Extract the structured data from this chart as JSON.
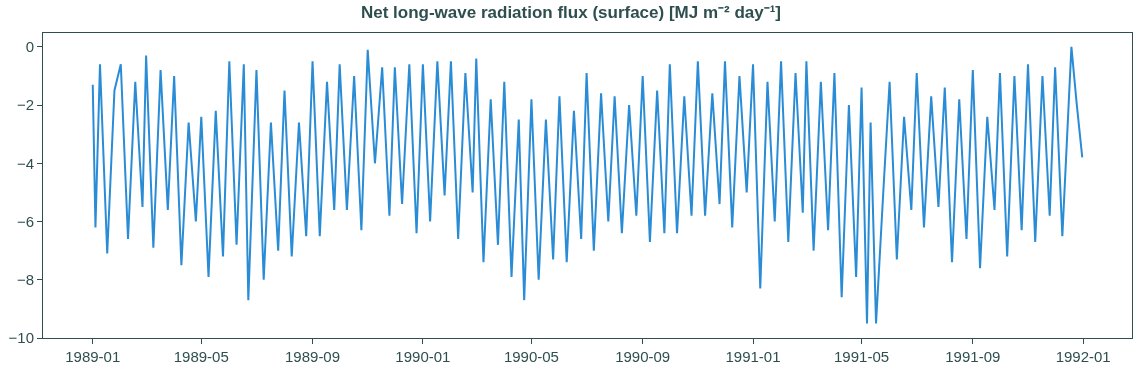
{
  "chart_data": {
    "type": "line",
    "title": "Net long-wave radiation flux (surface) [MJ m⁻² day⁻¹]",
    "x": [
      "1989-01-01",
      "1989-01-04",
      "1989-01-09",
      "1989-01-17",
      "1989-01-25",
      "1989-02-01",
      "1989-02-09",
      "1989-02-17",
      "1989-02-25",
      "1989-03-01",
      "1989-03-09",
      "1989-03-17",
      "1989-03-25",
      "1989-04-01",
      "1989-04-09",
      "1989-04-17",
      "1989-04-25",
      "1989-05-01",
      "1989-05-09",
      "1989-05-17",
      "1989-05-25",
      "1989-06-01",
      "1989-06-09",
      "1989-06-17",
      "1989-06-22",
      "1989-07-01",
      "1989-07-09",
      "1989-07-17",
      "1989-07-25",
      "1989-08-01",
      "1989-08-09",
      "1989-08-17",
      "1989-08-25",
      "1989-09-01",
      "1989-09-09",
      "1989-09-17",
      "1989-09-25",
      "1989-10-01",
      "1989-10-09",
      "1989-10-17",
      "1989-10-25",
      "1989-11-01",
      "1989-11-09",
      "1989-11-17",
      "1989-11-25",
      "1989-12-01",
      "1989-12-09",
      "1989-12-17",
      "1989-12-25",
      "1990-01-01",
      "1990-01-09",
      "1990-01-17",
      "1990-01-25",
      "1990-02-01",
      "1990-02-09",
      "1990-02-17",
      "1990-02-25",
      "1990-03-01",
      "1990-03-09",
      "1990-03-17",
      "1990-03-25",
      "1990-04-01",
      "1990-04-09",
      "1990-04-17",
      "1990-04-23",
      "1990-05-01",
      "1990-05-09",
      "1990-05-17",
      "1990-05-25",
      "1990-06-01",
      "1990-06-09",
      "1990-06-17",
      "1990-06-25",
      "1990-07-01",
      "1990-07-09",
      "1990-07-17",
      "1990-07-25",
      "1990-08-01",
      "1990-08-09",
      "1990-08-17",
      "1990-08-25",
      "1990-09-01",
      "1990-09-09",
      "1990-09-17",
      "1990-09-25",
      "1990-10-01",
      "1990-10-09",
      "1990-10-17",
      "1990-10-25",
      "1990-11-01",
      "1990-11-09",
      "1990-11-17",
      "1990-11-25",
      "1990-12-01",
      "1990-12-09",
      "1990-12-17",
      "1990-12-25",
      "1991-01-01",
      "1991-01-09",
      "1991-01-17",
      "1991-01-25",
      "1991-02-01",
      "1991-02-09",
      "1991-02-17",
      "1991-02-25",
      "1991-03-01",
      "1991-03-09",
      "1991-03-17",
      "1991-03-25",
      "1991-04-01",
      "1991-04-09",
      "1991-04-17",
      "1991-04-25",
      "1991-05-01",
      "1991-05-07",
      "1991-05-11",
      "1991-05-17",
      "1991-05-25",
      "1991-06-01",
      "1991-06-09",
      "1991-06-17",
      "1991-06-25",
      "1991-07-01",
      "1991-07-09",
      "1991-07-17",
      "1991-07-25",
      "1991-08-01",
      "1991-08-09",
      "1991-08-17",
      "1991-08-25",
      "1991-09-01",
      "1991-09-09",
      "1991-09-17",
      "1991-09-25",
      "1991-10-01",
      "1991-10-09",
      "1991-10-17",
      "1991-10-25",
      "1991-11-01",
      "1991-11-09",
      "1991-11-17",
      "1991-11-25",
      "1991-12-01",
      "1991-12-09",
      "1991-12-19",
      "1991-12-25",
      "1991-12-31"
    ],
    "series": [
      {
        "color": "#2b8cd6",
        "values": [
          -1.3,
          -6.2,
          -0.6,
          -7.1,
          -1.5,
          -0.6,
          -6.6,
          -1.2,
          -5.5,
          -0.3,
          -6.9,
          -0.8,
          -5.6,
          -1.0,
          -7.5,
          -2.6,
          -6.0,
          -2.4,
          -7.9,
          -2.2,
          -7.2,
          -0.5,
          -6.8,
          -0.6,
          -8.7,
          -0.8,
          -8.0,
          -2.6,
          -7.0,
          -1.5,
          -7.2,
          -2.6,
          -6.5,
          -0.5,
          -6.5,
          -1.2,
          -5.6,
          -0.6,
          -5.6,
          -1.0,
          -6.3,
          -0.1,
          -4.0,
          -0.7,
          -5.8,
          -0.7,
          -5.4,
          -0.6,
          -6.4,
          -0.6,
          -6.0,
          -0.5,
          -5.1,
          -0.5,
          -6.6,
          -0.9,
          -5.0,
          -0.4,
          -7.4,
          -1.8,
          -6.8,
          -1.2,
          -7.9,
          -2.5,
          -8.7,
          -1.8,
          -8.0,
          -2.5,
          -7.3,
          -1.7,
          -7.4,
          -2.2,
          -6.6,
          -0.9,
          -7.0,
          -1.6,
          -6.0,
          -1.7,
          -6.4,
          -2.0,
          -5.8,
          -1.0,
          -6.7,
          -1.5,
          -6.4,
          -0.6,
          -6.4,
          -1.7,
          -5.8,
          -0.5,
          -5.8,
          -1.6,
          -5.4,
          -0.5,
          -6.2,
          -1.0,
          -5.0,
          -0.6,
          -8.3,
          -1.2,
          -6.0,
          -0.5,
          -6.7,
          -0.9,
          -5.7,
          -0.5,
          -7.0,
          -1.2,
          -6.3,
          -0.9,
          -8.6,
          -2.0,
          -7.9,
          -1.4,
          -9.5,
          -2.6,
          -9.5,
          -5.0,
          -1.2,
          -7.3,
          -2.4,
          -5.6,
          -0.9,
          -6.2,
          -1.7,
          -5.5,
          -1.4,
          -7.4,
          -1.8,
          -6.6,
          -0.8,
          -7.6,
          -2.4,
          -5.6,
          -0.9,
          -7.2,
          -1.0,
          -6.3,
          -0.6,
          -6.7,
          -1.0,
          -5.8,
          -0.7,
          -6.5,
          0.0,
          -2.0,
          -3.8
        ]
      }
    ],
    "xlim": [
      "1988-11-07",
      "1992-02-24"
    ],
    "xticks": [
      "1989-01",
      "1989-05",
      "1989-09",
      "1990-01",
      "1990-05",
      "1990-09",
      "1991-01",
      "1991-05",
      "1991-09",
      "1992-01"
    ],
    "ylim": [
      -10,
      0.475
    ],
    "yticks": [
      -10,
      -8,
      -6,
      -4,
      -2,
      0
    ],
    "grid": false,
    "marker": "none",
    "line_style": "solid"
  }
}
